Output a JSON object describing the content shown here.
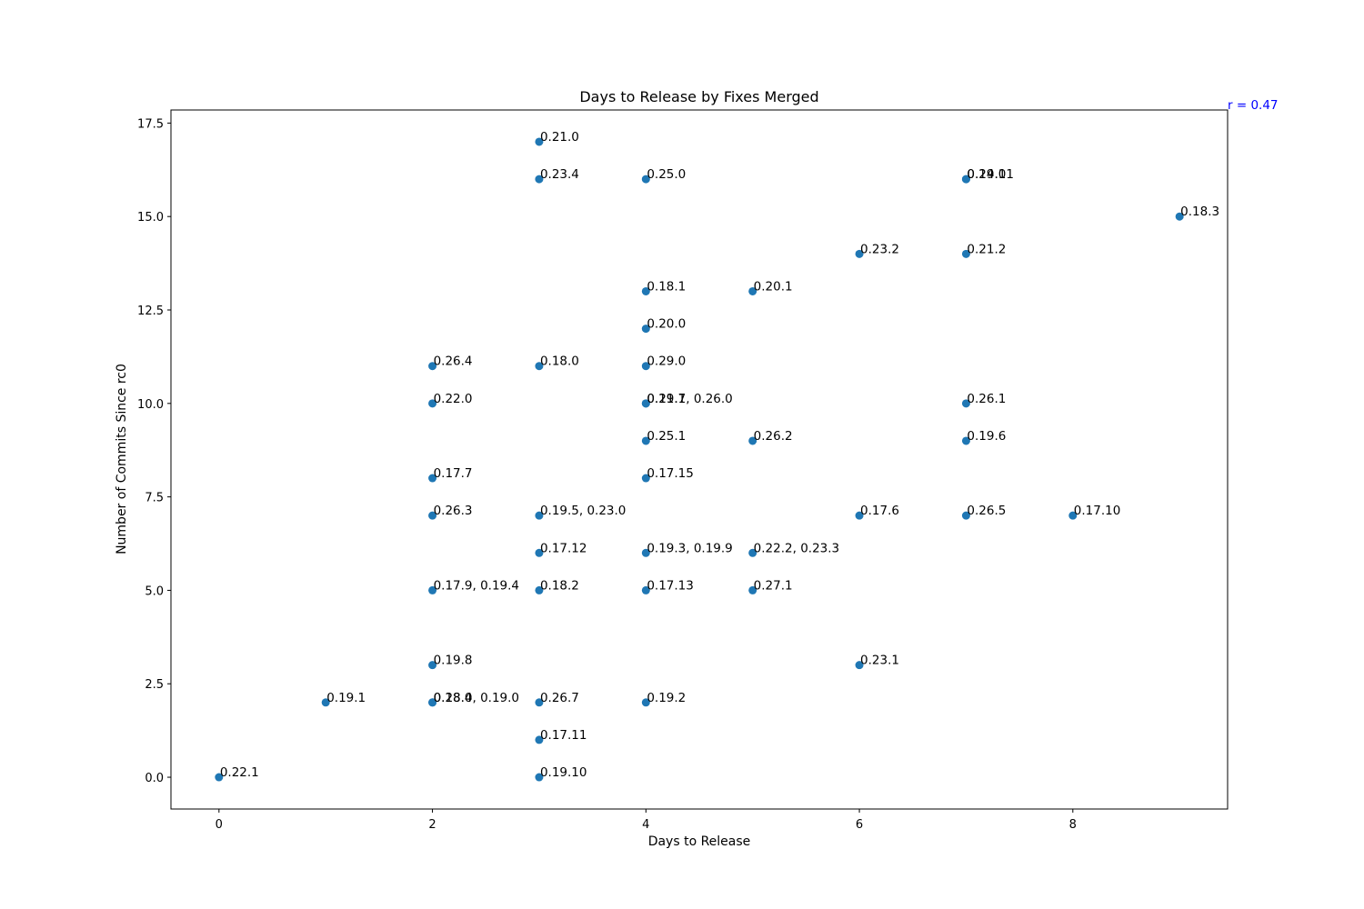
{
  "chart_data": {
    "type": "scatter",
    "title": "Days to Release by Fixes Merged",
    "xlabel": "Days to Release",
    "ylabel": "Number of Commits Since rc0",
    "xlim": [
      -0.45,
      9.45
    ],
    "ylim": [
      -0.85,
      17.85
    ],
    "xticks": [
      0,
      2,
      4,
      6,
      8
    ],
    "yticks": [
      0.0,
      2.5,
      5.0,
      7.5,
      10.0,
      12.5,
      15.0,
      17.5
    ],
    "ytick_labels": [
      "0.0",
      "2.5",
      "5.0",
      "7.5",
      "10.0",
      "12.5",
      "15.0",
      "17.5"
    ],
    "grid": false,
    "marker_color": "#1f77b4",
    "annotation": {
      "text": "r = 0.47",
      "color": "#0000ff"
    },
    "points": [
      {
        "x": 3,
        "y": 17,
        "label": "0.21.0"
      },
      {
        "x": 3,
        "y": 16,
        "label": "0.23.4"
      },
      {
        "x": 4,
        "y": 16,
        "label": "0.25.0"
      },
      {
        "x": 7,
        "y": 16,
        "label": "0.19.11"
      },
      {
        "x": 7,
        "y": 16,
        "label": "0.24.0"
      },
      {
        "x": 9,
        "y": 15,
        "label": "0.18.3"
      },
      {
        "x": 6,
        "y": 14,
        "label": "0.23.2"
      },
      {
        "x": 7,
        "y": 14,
        "label": "0.21.2"
      },
      {
        "x": 4,
        "y": 13,
        "label": "0.18.1"
      },
      {
        "x": 5,
        "y": 13,
        "label": "0.20.1"
      },
      {
        "x": 4,
        "y": 12,
        "label": "0.20.0"
      },
      {
        "x": 2,
        "y": 11,
        "label": "0.26.4"
      },
      {
        "x": 3,
        "y": 11,
        "label": "0.18.0"
      },
      {
        "x": 4,
        "y": 11,
        "label": "0.29.0"
      },
      {
        "x": 2,
        "y": 10,
        "label": "0.22.0"
      },
      {
        "x": 4,
        "y": 10,
        "label": "0.19.7, 0.26.0"
      },
      {
        "x": 4,
        "y": 10,
        "label": "0.21.1"
      },
      {
        "x": 7,
        "y": 10,
        "label": "0.26.1"
      },
      {
        "x": 4,
        "y": 9,
        "label": "0.25.1"
      },
      {
        "x": 5,
        "y": 9,
        "label": "0.26.2"
      },
      {
        "x": 7,
        "y": 9,
        "label": "0.19.6"
      },
      {
        "x": 2,
        "y": 8,
        "label": "0.17.7"
      },
      {
        "x": 4,
        "y": 8,
        "label": "0.17.15"
      },
      {
        "x": 2,
        "y": 7,
        "label": "0.26.3"
      },
      {
        "x": 3,
        "y": 7,
        "label": "0.19.5, 0.23.0"
      },
      {
        "x": 6,
        "y": 7,
        "label": "0.17.6"
      },
      {
        "x": 7,
        "y": 7,
        "label": "0.26.5"
      },
      {
        "x": 8,
        "y": 7,
        "label": "0.17.10"
      },
      {
        "x": 3,
        "y": 6,
        "label": "0.17.12"
      },
      {
        "x": 4,
        "y": 6,
        "label": "0.19.3, 0.19.9"
      },
      {
        "x": 5,
        "y": 6,
        "label": "0.22.2, 0.23.3"
      },
      {
        "x": 2,
        "y": 5,
        "label": "0.17.9, 0.19.4"
      },
      {
        "x": 3,
        "y": 5,
        "label": "0.18.2"
      },
      {
        "x": 4,
        "y": 5,
        "label": "0.17.13"
      },
      {
        "x": 5,
        "y": 5,
        "label": "0.27.1"
      },
      {
        "x": 2,
        "y": 3,
        "label": "0.19.8"
      },
      {
        "x": 6,
        "y": 3,
        "label": "0.23.1"
      },
      {
        "x": 1,
        "y": 2,
        "label": "0.19.1"
      },
      {
        "x": 2,
        "y": 2,
        "label": "0.18.4, 0.19.0"
      },
      {
        "x": 2,
        "y": 2,
        "label": "0.28.0"
      },
      {
        "x": 3,
        "y": 2,
        "label": "0.26.7"
      },
      {
        "x": 4,
        "y": 2,
        "label": "0.19.2"
      },
      {
        "x": 3,
        "y": 1,
        "label": "0.17.11"
      },
      {
        "x": 0,
        "y": 0,
        "label": "0.22.1"
      },
      {
        "x": 3,
        "y": 0,
        "label": "0.19.10"
      }
    ]
  }
}
